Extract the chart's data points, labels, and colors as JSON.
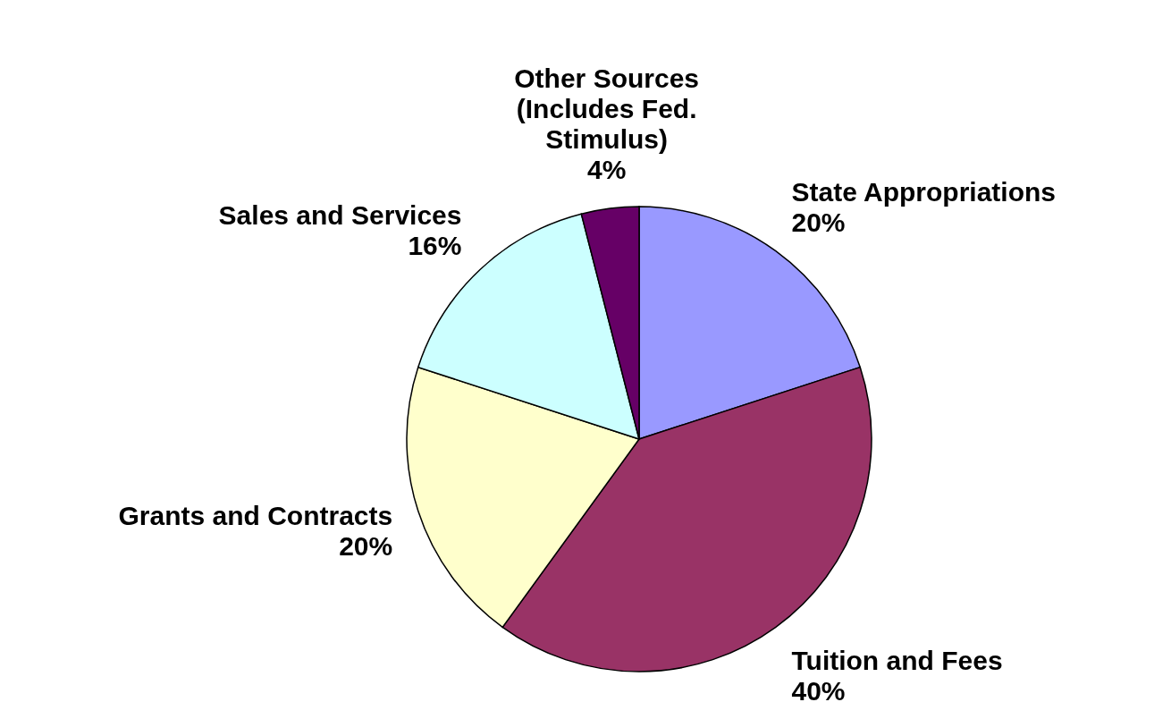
{
  "chart_data": {
    "type": "pie",
    "categories": [
      "State Appropriations",
      "Tuition and Fees",
      "Grants and Contracts",
      "Sales and Services",
      "Other Sources (Includes Fed. Stimulus)"
    ],
    "values": [
      20,
      40,
      20,
      16,
      4
    ],
    "value_labels": [
      "20%",
      "40%",
      "20%",
      "16%",
      "4%"
    ],
    "colors": [
      "#9999ff",
      "#993366",
      "#ffffcc",
      "#ccffff",
      "#660066"
    ]
  }
}
